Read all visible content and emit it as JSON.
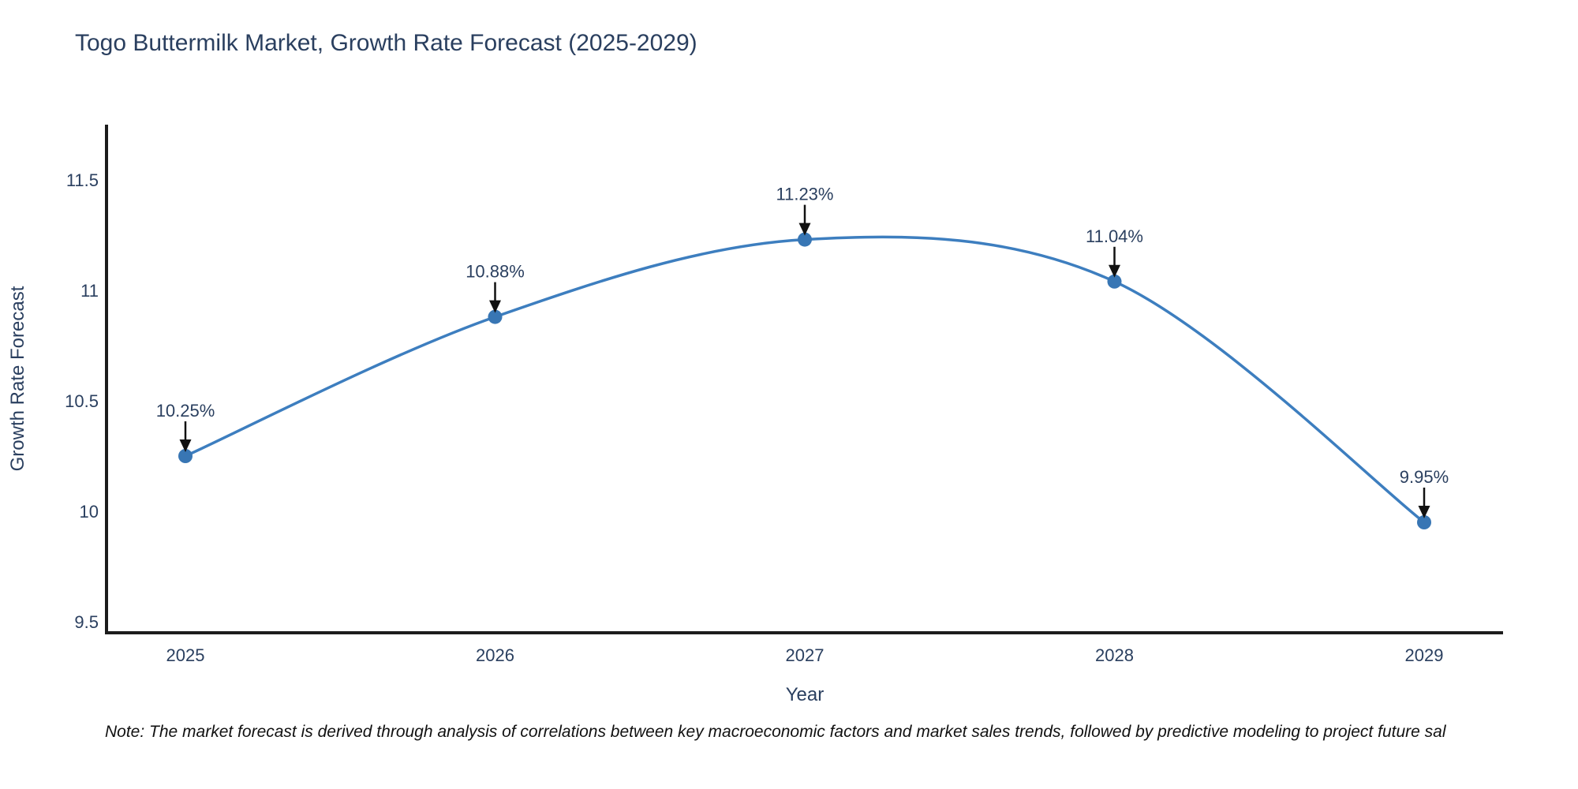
{
  "title": "Togo Buttermilk Market, Growth Rate Forecast (2025-2029)",
  "note": "Note: The market forecast is derived through analysis of correlations between key macroeconomic factors and market sales trends, followed by predictive modeling to project future sal",
  "chart_data": {
    "type": "line",
    "line_shape": "spline",
    "title": "Togo Buttermilk Market, Growth Rate Forecast (2025-2029)",
    "xlabel": "Year",
    "ylabel": "Growth Rate Forecast",
    "x": [
      2025,
      2026,
      2027,
      2028,
      2029
    ],
    "xtick_labels": [
      "2025",
      "2026",
      "2027",
      "2028",
      "2029"
    ],
    "series": [
      {
        "name": "Growth Rate Forecast",
        "values": [
          10.25,
          10.88,
          11.23,
          11.04,
          9.95
        ]
      }
    ],
    "point_labels": [
      "10.25%",
      "10.88%",
      "11.23%",
      "11.04%",
      "9.95%"
    ],
    "yticks": [
      9.5,
      10,
      10.5,
      11,
      11.5
    ],
    "ytick_labels": [
      "9.5",
      "10",
      "10.5",
      "11",
      "11.5"
    ],
    "ylim": [
      9.45,
      11.75
    ],
    "grid": false,
    "legend_position": "none",
    "annotations_have_arrows": true,
    "colors": {
      "line": "#3d7ebf",
      "marker": "#3876b4",
      "axis_line": "#1c1c1c",
      "text": "#2a3f5f",
      "arrow": "#111111",
      "note_text": "#111111",
      "background": "#ffffff"
    }
  }
}
